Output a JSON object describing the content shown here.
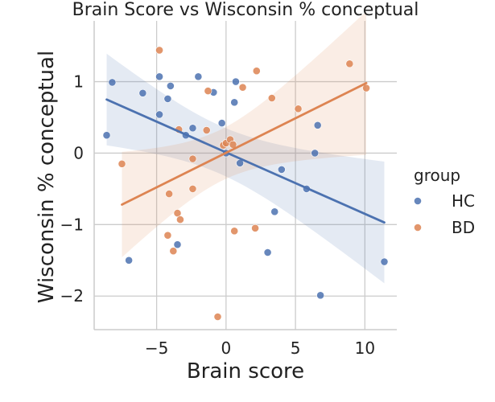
{
  "chart_data": {
    "type": "scatter",
    "title": "Brain Score vs Wisconsin % conceptual",
    "xlabel": "Brain score",
    "ylabel": "Wisconsin % conceptual",
    "xlim": [
      -9.5,
      12.3
    ],
    "ylim": [
      -2.47,
      1.85
    ],
    "xticks": [
      -5,
      0,
      5,
      10
    ],
    "xtick_labels": [
      "−5",
      "0",
      "5",
      "10"
    ],
    "yticks": [
      -2,
      -1,
      0,
      1
    ],
    "ytick_labels": [
      "−2",
      "−1",
      "0",
      "1"
    ],
    "grid": true,
    "legend": {
      "title": "group",
      "placement": "right"
    },
    "series": [
      {
        "name": "HC",
        "color": "#4c72b0",
        "points": [
          [
            -8.6,
            0.25
          ],
          [
            -8.2,
            0.99
          ],
          [
            -6.0,
            0.84
          ],
          [
            -7.0,
            -1.5
          ],
          [
            -4.8,
            1.07
          ],
          [
            -4.8,
            0.54
          ],
          [
            -4.0,
            0.94
          ],
          [
            -4.2,
            0.76
          ],
          [
            -2.0,
            1.07
          ],
          [
            -2.4,
            0.35
          ],
          [
            -2.9,
            0.25
          ],
          [
            -3.5,
            -1.28
          ],
          [
            -0.9,
            0.85
          ],
          [
            -0.3,
            0.42
          ],
          [
            0.0,
            0.0
          ],
          [
            0.6,
            0.71
          ],
          [
            0.7,
            1.0
          ],
          [
            1.0,
            -0.14
          ],
          [
            4.0,
            -0.23
          ],
          [
            3.5,
            -0.82
          ],
          [
            3.0,
            -1.39
          ],
          [
            5.8,
            -0.5
          ],
          [
            6.4,
            0.0
          ],
          [
            6.6,
            0.39
          ],
          [
            6.8,
            -1.99
          ],
          [
            11.4,
            -1.52
          ]
        ],
        "regression": {
          "x": [
            -8.6,
            11.4
          ],
          "y": [
            0.75,
            -0.97
          ]
        }
      },
      {
        "name": "BD",
        "color": "#dd8452",
        "points": [
          [
            -7.5,
            -0.15
          ],
          [
            -4.8,
            1.44
          ],
          [
            -4.1,
            -0.57
          ],
          [
            -4.2,
            -1.15
          ],
          [
            -3.4,
            0.33
          ],
          [
            -3.5,
            -0.84
          ],
          [
            -3.3,
            -0.93
          ],
          [
            -3.8,
            -1.37
          ],
          [
            -2.4,
            -0.08
          ],
          [
            -2.4,
            -0.5
          ],
          [
            -1.3,
            0.87
          ],
          [
            -1.4,
            0.32
          ],
          [
            -0.2,
            0.11
          ],
          [
            0.0,
            0.14
          ],
          [
            0.3,
            0.19
          ],
          [
            0.5,
            0.12
          ],
          [
            0.6,
            -1.09
          ],
          [
            1.2,
            0.92
          ],
          [
            2.2,
            1.15
          ],
          [
            2.1,
            -1.05
          ],
          [
            3.3,
            0.77
          ],
          [
            5.2,
            0.62
          ],
          [
            8.9,
            1.25
          ],
          [
            10.1,
            0.91
          ],
          [
            -0.6,
            -2.29
          ]
        ],
        "regression": {
          "x": [
            -7.5,
            10.1
          ],
          "y": [
            -0.72,
            0.98
          ]
        }
      }
    ]
  }
}
